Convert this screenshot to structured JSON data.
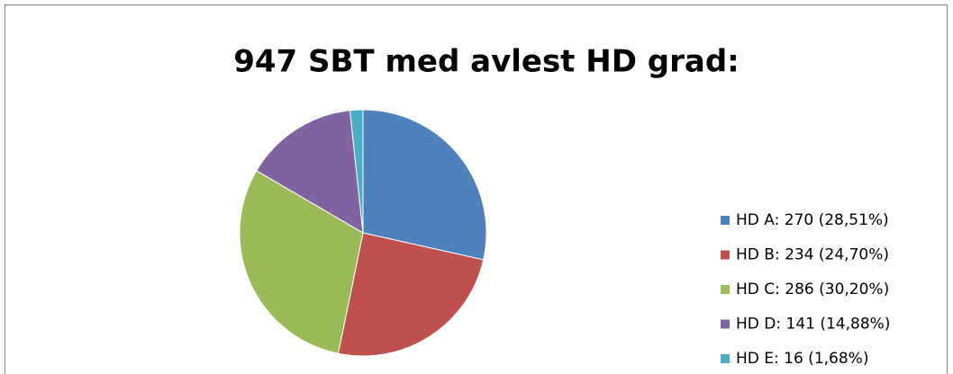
{
  "chart_data": {
    "type": "pie",
    "title": "947 SBT med avlest HD grad:",
    "categories": [
      "HD A: 270 (28,51%)",
      "HD B: 234 (24,70%)",
      "HD C: 286 (30,20%)",
      "HD D: 141 (14,88%)",
      "HD E: 16 (1,68%)"
    ],
    "values": [
      270,
      234,
      286,
      141,
      16
    ],
    "colors": [
      "#4f81bd",
      "#c0504d",
      "#9bbb59",
      "#8064a2",
      "#4bacc6"
    ],
    "legend": "right"
  }
}
